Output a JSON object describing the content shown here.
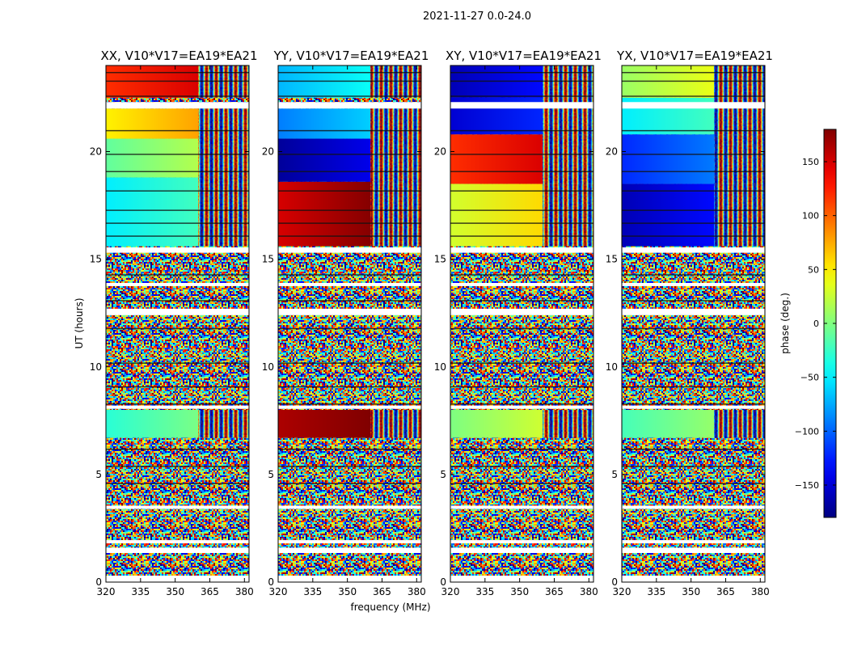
{
  "figure": {
    "suptitle": "2021-11-27 0.0-24.0",
    "xlabel": "frequency (MHz)",
    "ylabel": "UT (hours)"
  },
  "colorbar": {
    "label": "phase (deg.)",
    "range": [
      -180,
      180
    ],
    "ticks": [
      150,
      100,
      50,
      0,
      -50,
      -100,
      -150
    ],
    "tick_labels": [
      "150",
      "100",
      "50",
      "0",
      "−50",
      "−100",
      "−150"
    ],
    "colormap": "jet"
  },
  "chart_data": [
    {
      "type": "heatmap",
      "title": "XX, V10*V17=EA19*EA21",
      "x_range": [
        320,
        382
      ],
      "y_range": [
        0,
        24
      ],
      "xticks": [
        320,
        335,
        350,
        365,
        380
      ],
      "xtick_labels": [
        "320",
        "335",
        "350",
        "365",
        "380"
      ],
      "yticks": [
        0,
        5,
        10,
        15,
        20
      ],
      "ytick_labels": [
        "0",
        "5",
        "10",
        "15",
        "20"
      ],
      "coherent_blocks": [
        {
          "ut": [
            15.6,
            18.8
          ],
          "freq": [
            320,
            360
          ],
          "phase_deg": -40
        },
        {
          "ut": [
            18.8,
            20.6
          ],
          "freq": [
            320,
            360
          ],
          "phase_deg": 0
        },
        {
          "ut": [
            20.6,
            22.0
          ],
          "freq": [
            320,
            360
          ],
          "phase_deg": 60
        },
        {
          "ut": [
            22.5,
            24.0
          ],
          "freq": [
            320,
            360
          ],
          "phase_deg": 130
        },
        {
          "ut": [
            6.7,
            8.0
          ],
          "freq": [
            320,
            360
          ],
          "phase_deg": -20
        }
      ]
    },
    {
      "type": "heatmap",
      "title": "YY, V10*V17=EA19*EA21",
      "x_range": [
        320,
        382
      ],
      "y_range": [
        0,
        24
      ],
      "xticks": [
        320,
        335,
        350,
        365,
        380
      ],
      "xtick_labels": [
        "320",
        "335",
        "350",
        "365",
        "380"
      ],
      "yticks": [
        0,
        5,
        10,
        15,
        20
      ],
      "ytick_labels": [
        "0",
        "5",
        "10",
        "15",
        "20"
      ],
      "coherent_blocks": [
        {
          "ut": [
            15.6,
            18.6
          ],
          "freq": [
            320,
            360
          ],
          "phase_deg": 160
        },
        {
          "ut": [
            18.6,
            20.6
          ],
          "freq": [
            320,
            360
          ],
          "phase_deg": -160
        },
        {
          "ut": [
            20.6,
            22.0
          ],
          "freq": [
            320,
            360
          ],
          "phase_deg": -80
        },
        {
          "ut": [
            22.5,
            24.0
          ],
          "freq": [
            320,
            360
          ],
          "phase_deg": -60
        },
        {
          "ut": [
            6.7,
            8.0
          ],
          "freq": [
            320,
            360
          ],
          "phase_deg": 175
        }
      ]
    },
    {
      "type": "heatmap",
      "title": "XY, V10*V17=EA19*EA21",
      "x_range": [
        320,
        382
      ],
      "y_range": [
        0,
        24
      ],
      "xticks": [
        320,
        335,
        350,
        365,
        380
      ],
      "xtick_labels": [
        "320",
        "335",
        "350",
        "365",
        "380"
      ],
      "yticks": [
        0,
        5,
        10,
        15,
        20
      ],
      "ytick_labels": [
        "0",
        "5",
        "10",
        "15",
        "20"
      ],
      "coherent_blocks": [
        {
          "ut": [
            15.6,
            18.5
          ],
          "freq": [
            320,
            360
          ],
          "phase_deg": 40
        },
        {
          "ut": [
            18.5,
            20.8
          ],
          "freq": [
            320,
            360
          ],
          "phase_deg": 130
        },
        {
          "ut": [
            20.8,
            22.5
          ],
          "freq": [
            320,
            360
          ],
          "phase_deg": -140
        },
        {
          "ut": [
            22.5,
            24.0
          ],
          "freq": [
            320,
            360
          ],
          "phase_deg": -150
        },
        {
          "ut": [
            6.7,
            8.0
          ],
          "freq": [
            320,
            360
          ],
          "phase_deg": 10
        }
      ]
    },
    {
      "type": "heatmap",
      "title": "YX, V10*V17=EA19*EA21",
      "x_range": [
        320,
        382
      ],
      "y_range": [
        0,
        24
      ],
      "xticks": [
        320,
        335,
        350,
        365,
        380
      ],
      "xtick_labels": [
        "320",
        "335",
        "350",
        "365",
        "380"
      ],
      "yticks": [
        0,
        5,
        10,
        15,
        20
      ],
      "ytick_labels": [
        "0",
        "5",
        "10",
        "15",
        "20"
      ],
      "coherent_blocks": [
        {
          "ut": [
            15.6,
            18.5
          ],
          "freq": [
            320,
            360
          ],
          "phase_deg": -150
        },
        {
          "ut": [
            18.5,
            20.8
          ],
          "freq": [
            320,
            360
          ],
          "phase_deg": -110
        },
        {
          "ut": [
            20.8,
            22.5
          ],
          "freq": [
            320,
            360
          ],
          "phase_deg": -40
        },
        {
          "ut": [
            22.5,
            24.0
          ],
          "freq": [
            320,
            360
          ],
          "phase_deg": 20
        },
        {
          "ut": [
            6.7,
            8.0
          ],
          "freq": [
            320,
            360
          ],
          "phase_deg": -10
        }
      ]
    }
  ]
}
